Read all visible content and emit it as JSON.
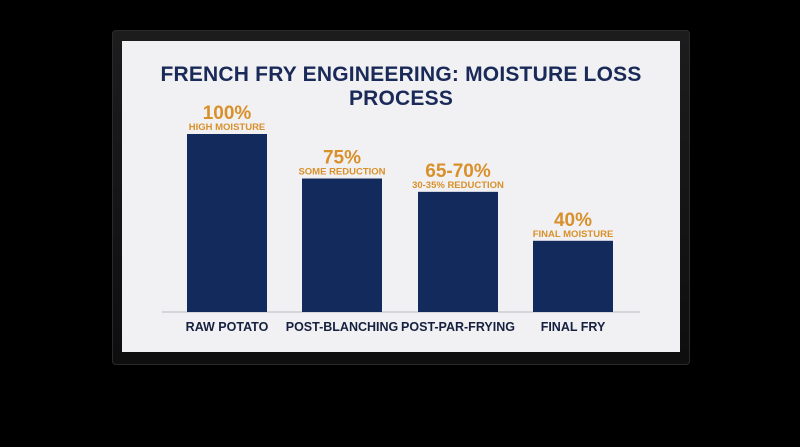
{
  "chart_data": {
    "type": "bar",
    "title": "FRENCH FRY ENGINEERING: MOISTURE LOSS PROCESS",
    "categories": [
      "RAW POTATO",
      "POST-BLANCHING",
      "POST-PAR-FRYING",
      "FINAL FRY"
    ],
    "values": [
      100,
      75,
      67.5,
      40
    ],
    "value_labels": [
      "100%",
      "75%",
      "65-70%",
      "40%"
    ],
    "annotations": [
      "HIGH MOISTURE",
      "SOME REDUCTION",
      "30-35% REDUCTION",
      "FINAL MOISTURE"
    ],
    "ylim": [
      0,
      100
    ],
    "grid": false,
    "legend": "none",
    "colors": {
      "bar": "#132a5c",
      "value_text": "#d9902a",
      "title": "#1a2a58",
      "background": "#f1f1f3"
    }
  }
}
